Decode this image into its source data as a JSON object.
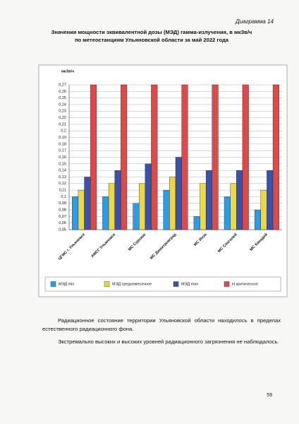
{
  "header": {
    "label": "Диаграмма 14"
  },
  "chart_data": {
    "type": "bar",
    "title": "Значения мощности эквивалентной дозы (МЭД) гамма-излучения, в мкЗв/ч по метеостанциям Ульяновской области за май 2022 года",
    "ylabel": "мкЗв/ч",
    "categories": [
      "ЦГМС г. Ульяновск",
      "АМСГ Ульяновск",
      "МС Сурское",
      "МС Димитровград",
      "МС Инза",
      "МС Сенгилей",
      "МС Канадей"
    ],
    "series": [
      {
        "name": "МЭД min",
        "color": "#2f9be6",
        "values": [
          0.1,
          0.1,
          0.09,
          0.11,
          0.07,
          0.1,
          0.08
        ]
      },
      {
        "name": "МЭД среднемесячное",
        "color": "#ecd64a",
        "values": [
          0.11,
          0.12,
          0.12,
          0.13,
          0.12,
          0.12,
          0.11
        ]
      },
      {
        "name": "МЭД max",
        "color": "#3a52a8",
        "values": [
          0.13,
          0.14,
          0.15,
          0.16,
          0.14,
          0.14,
          0.14
        ]
      },
      {
        "name": "Н критическое",
        "color": "#dd4a4a",
        "values": [
          0.27,
          0.27,
          0.27,
          0.27,
          0.27,
          0.27,
          0.27
        ]
      }
    ],
    "ylim": [
      0.05,
      0.27
    ],
    "yticks": [
      {
        "value": 0.05,
        "label": "0,05"
      },
      {
        "value": 0.06,
        "label": "0,06"
      },
      {
        "value": 0.07,
        "label": "0,07"
      },
      {
        "value": 0.08,
        "label": "0,08"
      },
      {
        "value": 0.09,
        "label": "0,09"
      },
      {
        "value": 0.1,
        "label": "0,1"
      },
      {
        "value": 0.11,
        "label": "0,11"
      },
      {
        "value": 0.12,
        "label": "0,12"
      },
      {
        "value": 0.13,
        "label": "0,13"
      },
      {
        "value": 0.14,
        "label": "0,14"
      },
      {
        "value": 0.15,
        "label": "0,15"
      },
      {
        "value": 0.16,
        "label": "0,16"
      },
      {
        "value": 0.17,
        "label": "0,17"
      },
      {
        "value": 0.18,
        "label": "0,18"
      },
      {
        "value": 0.19,
        "label": "0,19"
      },
      {
        "value": 0.2,
        "label": "0,2"
      },
      {
        "value": 0.21,
        "label": "0,21"
      },
      {
        "value": 0.22,
        "label": "0,22"
      },
      {
        "value": 0.23,
        "label": "0,23"
      },
      {
        "value": 0.24,
        "label": "0,24"
      },
      {
        "value": 0.25,
        "label": "0,25"
      },
      {
        "value": 0.26,
        "label": "0,26"
      },
      {
        "value": 0.27,
        "label": "0,27"
      }
    ],
    "grid": true
  },
  "body": {
    "paragraphs": [
      "Радиационное состояние территории Ульяновской области находилось в пределах естественного радиационного фона.",
      "Экстремально высоких и высоких уровней радиационного загрязнения не наблюдалось."
    ]
  },
  "footer": {
    "page_number": "59"
  }
}
